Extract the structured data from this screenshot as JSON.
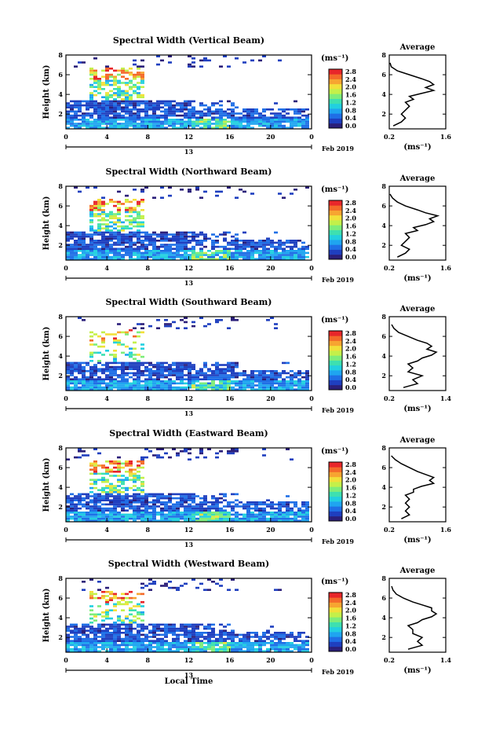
{
  "figure": {
    "xlabel": "Local Time",
    "date_label": "Feb 2019",
    "colorbar_unit": "(ms⁻¹)",
    "avg_title": "Average",
    "avg_xunit": "(ms⁻¹)",
    "colormap": [
      "#2b1f7a",
      "#1f3fbf",
      "#1f6fe6",
      "#1fa5f0",
      "#22d0e0",
      "#3ee0b0",
      "#7eed7a",
      "#c4f04a",
      "#f2e03a",
      "#f7a531",
      "#f46a2a",
      "#e8262a"
    ]
  },
  "chart_data": [
    {
      "type": "heatmap",
      "title": "Spectral Width (Vertical Beam)",
      "xlabel": "",
      "ylabel": "Height (km)",
      "x_ticks": [
        "0",
        "4",
        "8",
        "12",
        "16",
        "20",
        "0"
      ],
      "x_date_tick": "13",
      "y_ticks": [
        "2",
        "4",
        "6",
        "8"
      ],
      "xlim": [
        0,
        24
      ],
      "ylim": [
        0.5,
        8
      ],
      "colorbar": {
        "range": [
          0,
          2.8
        ],
        "ticks": [
          "2.8",
          "2.4",
          "2.0",
          "1.6",
          "1.2",
          "0.8",
          "0.4",
          "0.0"
        ]
      },
      "average_profile": {
        "xlim": [
          0.2,
          1.6
        ],
        "x_ticks": [
          "0.2",
          "1.6"
        ],
        "ylim": [
          0.5,
          8
        ],
        "y_ticks": [
          "2",
          "4",
          "6",
          "8"
        ],
        "width": [
          0.3,
          0.5,
          0.6,
          0.5,
          0.6,
          0.7,
          0.6,
          0.8,
          0.7,
          1.0,
          1.3,
          1.1,
          1.3,
          1.2,
          1.0,
          0.7,
          0.4,
          0.25,
          0.22
        ],
        "height": [
          0.8,
          1.2,
          1.6,
          2.0,
          2.4,
          2.8,
          3.2,
          3.5,
          3.8,
          4.1,
          4.4,
          4.7,
          5.0,
          5.3,
          5.6,
          6.0,
          6.4,
          6.8,
          7.2
        ]
      }
    },
    {
      "type": "heatmap",
      "title": "Spectral Width (Northward Beam)",
      "xlabel": "",
      "ylabel": "Height (km)",
      "x_ticks": [
        "0",
        "4",
        "8",
        "12",
        "16",
        "20",
        "0"
      ],
      "x_date_tick": "13",
      "y_ticks": [
        "2",
        "4",
        "6",
        "8"
      ],
      "xlim": [
        0,
        24
      ],
      "ylim": [
        0.5,
        8
      ],
      "colorbar": {
        "range": [
          0,
          2.8
        ],
        "ticks": [
          "2.8",
          "2.4",
          "2.0",
          "1.6",
          "1.2",
          "0.8",
          "0.4",
          "0.0"
        ]
      },
      "average_profile": {
        "xlim": [
          0.2,
          1.6
        ],
        "x_ticks": [
          "0.2",
          "1.6"
        ],
        "ylim": [
          0.5,
          8
        ],
        "y_ticks": [
          "2",
          "4",
          "6",
          "8"
        ],
        "width": [
          0.4,
          0.6,
          0.7,
          0.5,
          0.6,
          0.7,
          0.6,
          0.9,
          0.8,
          1.1,
          1.3,
          1.2,
          1.4,
          1.1,
          0.9,
          0.6,
          0.4,
          0.28,
          0.22
        ],
        "height": [
          0.8,
          1.2,
          1.6,
          2.0,
          2.4,
          2.8,
          3.2,
          3.5,
          3.8,
          4.1,
          4.4,
          4.7,
          5.0,
          5.3,
          5.6,
          6.0,
          6.4,
          6.8,
          7.2
        ]
      }
    },
    {
      "type": "heatmap",
      "title": "Spectral Width (Southward Beam)",
      "xlabel": "",
      "ylabel": "Height (km)",
      "x_ticks": [
        "0",
        "4",
        "8",
        "12",
        "16",
        "20",
        "0"
      ],
      "x_date_tick": "13",
      "y_ticks": [
        "2",
        "4",
        "6",
        "8"
      ],
      "xlim": [
        0,
        24
      ],
      "ylim": [
        0.5,
        8
      ],
      "colorbar": {
        "range": [
          0,
          2.8
        ],
        "ticks": [
          "2.8",
          "2.4",
          "2.0",
          "1.6",
          "1.2",
          "0.8",
          "0.4",
          "0.0"
        ]
      },
      "average_profile": {
        "xlim": [
          0.2,
          1.4
        ],
        "x_ticks": [
          "0.2",
          "1.4"
        ],
        "ylim": [
          0.5,
          8
        ],
        "y_ticks": [
          "2",
          "4",
          "6",
          "8"
        ],
        "width": [
          0.5,
          0.8,
          0.7,
          0.9,
          0.6,
          0.7,
          0.6,
          0.8,
          0.9,
          1.1,
          1.2,
          1.0,
          1.1,
          1.0,
          0.8,
          0.6,
          0.4,
          0.3,
          0.25
        ],
        "height": [
          0.8,
          1.2,
          1.6,
          2.0,
          2.4,
          2.8,
          3.2,
          3.5,
          3.8,
          4.1,
          4.4,
          4.7,
          5.0,
          5.3,
          5.6,
          6.0,
          6.4,
          6.8,
          7.2
        ]
      }
    },
    {
      "type": "heatmap",
      "title": "Spectral Width (Eastward Beam)",
      "xlabel": "",
      "ylabel": "Height (km)",
      "x_ticks": [
        "0",
        "4",
        "8",
        "12",
        "16",
        "20",
        "0"
      ],
      "x_date_tick": "13",
      "y_ticks": [
        "2",
        "4",
        "6",
        "8"
      ],
      "xlim": [
        0,
        24
      ],
      "ylim": [
        0.5,
        8
      ],
      "colorbar": {
        "range": [
          0,
          2.8
        ],
        "ticks": [
          "2.8",
          "2.4",
          "2.0",
          "1.6",
          "1.2",
          "0.8",
          "0.4",
          "0.0"
        ]
      },
      "average_profile": {
        "xlim": [
          0.2,
          1.6
        ],
        "x_ticks": [
          "0.2",
          "1.6"
        ],
        "ylim": [
          0.5,
          8
        ],
        "y_ticks": [
          "2",
          "4",
          "6",
          "8"
        ],
        "width": [
          0.5,
          0.7,
          0.6,
          0.7,
          0.6,
          0.7,
          0.6,
          0.8,
          0.8,
          1.0,
          1.3,
          1.2,
          1.3,
          1.1,
          0.9,
          0.7,
          0.5,
          0.35,
          0.25
        ],
        "height": [
          0.8,
          1.2,
          1.6,
          2.0,
          2.4,
          2.8,
          3.2,
          3.5,
          3.8,
          4.1,
          4.4,
          4.7,
          5.0,
          5.3,
          5.6,
          6.0,
          6.4,
          6.8,
          7.2
        ]
      }
    },
    {
      "type": "heatmap",
      "title": "Spectral Width (Westward Beam)",
      "xlabel": "Local Time",
      "ylabel": "Height (km)",
      "x_ticks": [
        "0",
        "4",
        "8",
        "12",
        "16",
        "20",
        "0"
      ],
      "x_date_tick": "13",
      "y_ticks": [
        "2",
        "4",
        "6",
        "8"
      ],
      "xlim": [
        0,
        24
      ],
      "ylim": [
        0.5,
        8
      ],
      "colorbar": {
        "range": [
          0,
          2.8
        ],
        "ticks": [
          "2.8",
          "2.4",
          "2.0",
          "1.6",
          "1.2",
          "0.8",
          "0.4",
          "0.0"
        ]
      },
      "average_profile": {
        "xlim": [
          0.2,
          1.4
        ],
        "x_ticks": [
          "0.2",
          "1.4"
        ],
        "ylim": [
          0.5,
          8
        ],
        "y_ticks": [
          "2",
          "4",
          "6",
          "8"
        ],
        "width": [
          0.6,
          0.9,
          0.8,
          0.9,
          0.7,
          0.7,
          0.6,
          0.8,
          0.9,
          1.1,
          1.2,
          1.1,
          1.1,
          0.9,
          0.7,
          0.5,
          0.35,
          0.28,
          0.25
        ],
        "height": [
          0.8,
          1.2,
          1.6,
          2.0,
          2.4,
          2.8,
          3.2,
          3.5,
          3.8,
          4.1,
          4.4,
          4.7,
          5.0,
          5.3,
          5.6,
          6.0,
          6.4,
          6.8,
          7.2
        ]
      }
    }
  ]
}
